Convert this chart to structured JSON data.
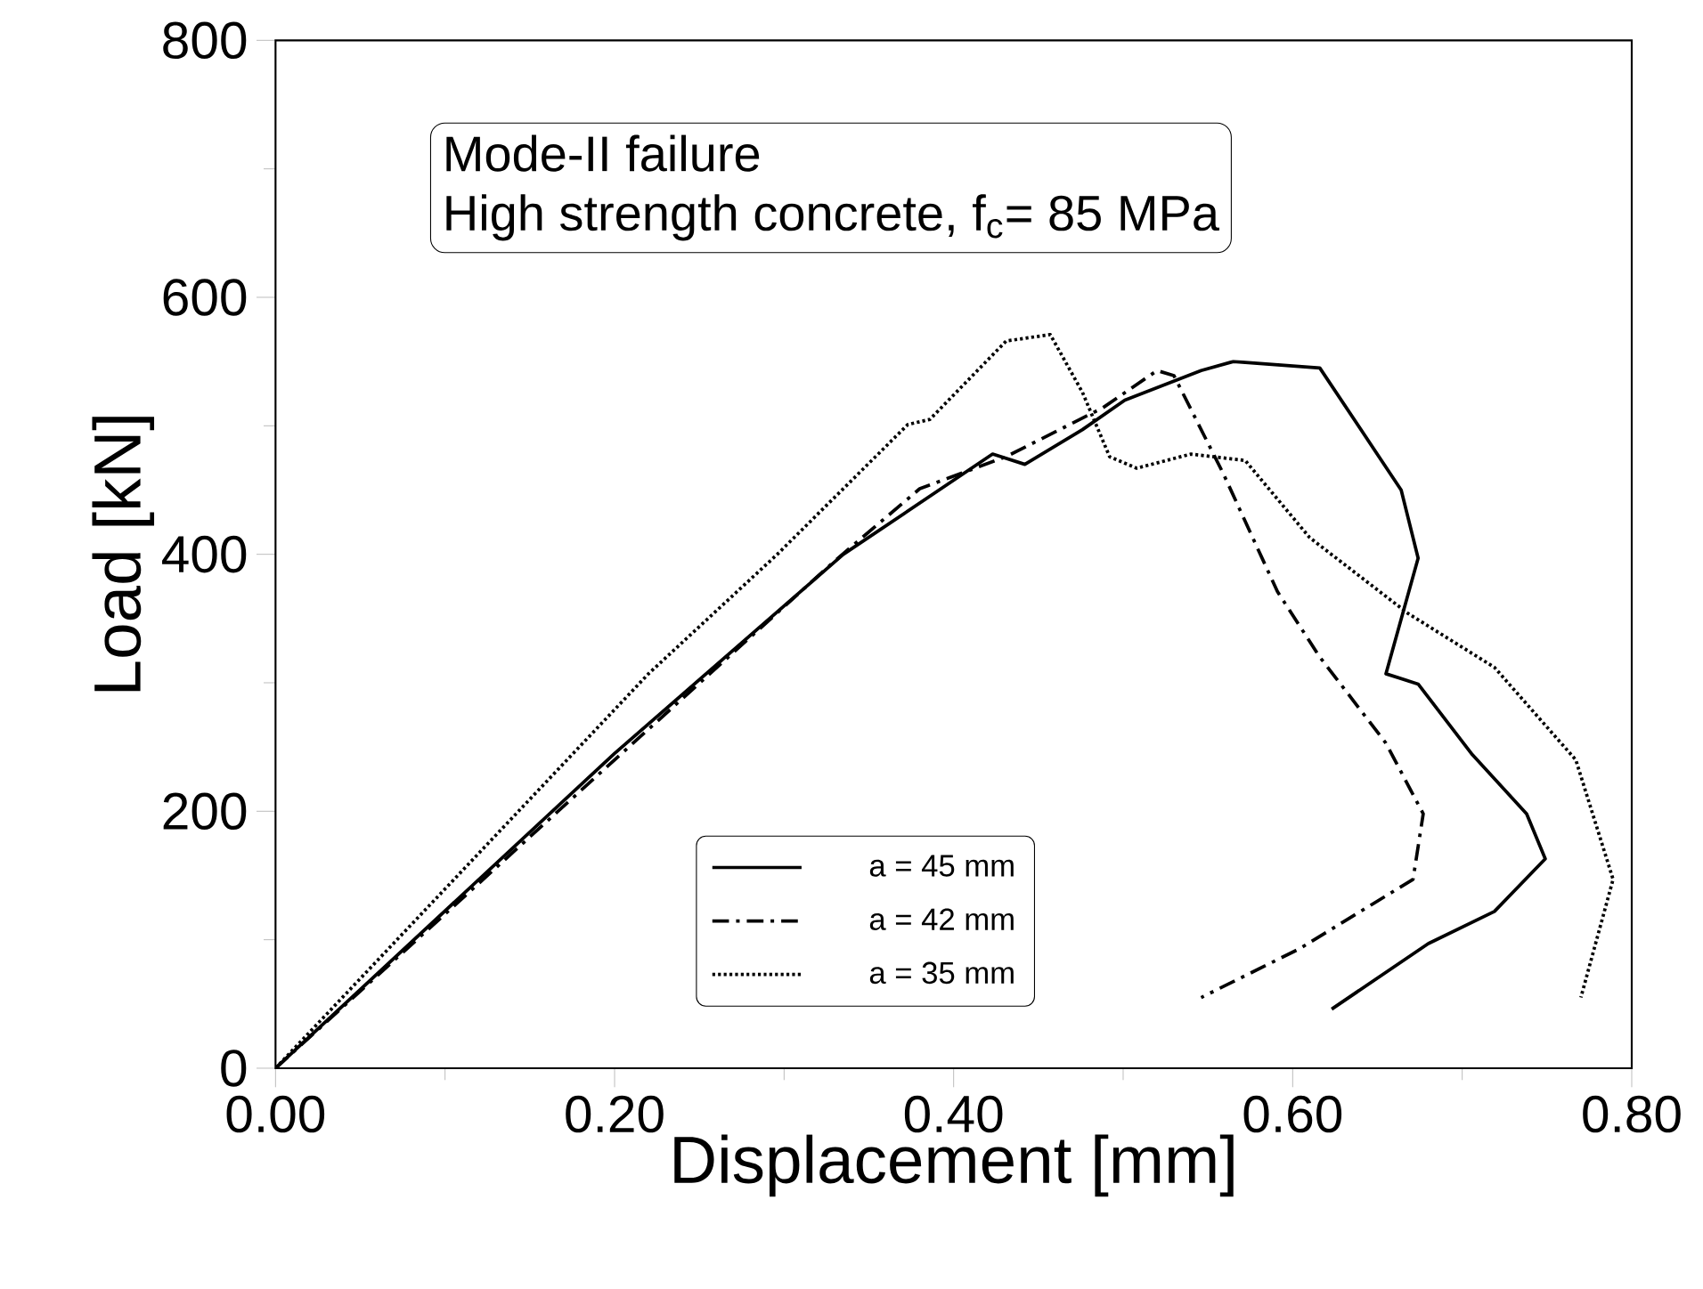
{
  "chart_data": {
    "type": "line",
    "xlabel": "Displacement [mm]",
    "ylabel": "Load [kN]",
    "annotations": [
      "Mode-II failure",
      "High strength concrete, f$_{c}$= 85 MPa"
    ],
    "xlim": [
      0,
      0.8
    ],
    "ylim": [
      0,
      800
    ],
    "xticks": [
      {
        "value": 0,
        "label": "0.00"
      },
      {
        "value": 0.2,
        "label": "0.20"
      },
      {
        "value": 0.4,
        "label": "0.40"
      },
      {
        "value": 0.6,
        "label": "0.60"
      },
      {
        "value": 0.8,
        "label": "0.80"
      }
    ],
    "yticks": [
      0,
      200,
      400,
      600,
      800
    ],
    "legend": "bottom",
    "grid": false,
    "marker": "none",
    "series": [
      {
        "name": "a = 45 mm",
        "color": "#000000",
        "line_style": "solid",
        "x": [
          0,
          0.2,
          0.335,
          0.423,
          0.442,
          0.476,
          0.501,
          0.546,
          0.565,
          0.616,
          0.664,
          0.674,
          0.655,
          0.674,
          0.706,
          0.738,
          0.749,
          0.719,
          0.68,
          0.623
        ],
        "values": [
          0,
          245,
          400,
          478,
          470,
          497,
          520,
          543,
          550,
          545,
          450,
          397,
          307,
          299,
          244,
          198,
          163,
          122,
          97,
          46
        ]
      },
      {
        "name": "a = 42 mm",
        "color": "#000000",
        "line_style": "dashed",
        "x": [
          0,
          0.2,
          0.33,
          0.38,
          0.431,
          0.488,
          0.52,
          0.53,
          0.559,
          0.591,
          0.616,
          0.655,
          0.677,
          0.671,
          0.604,
          0.546
        ],
        "values": [
          0,
          240,
          395,
          451,
          476,
          514,
          543,
          539,
          463,
          371,
          320,
          253,
          198,
          147,
          93,
          55
        ]
      },
      {
        "name": "a = 35 mm",
        "color": "#000000",
        "line_style": "dotted",
        "x": [
          0,
          0.22,
          0.296,
          0.373,
          0.386,
          0.431,
          0.457,
          0.476,
          0.492,
          0.508,
          0.54,
          0.572,
          0.61,
          0.668,
          0.719,
          0.767,
          0.789,
          0.77
        ],
        "values": [
          0,
          307,
          400,
          501,
          505,
          566,
          571,
          526,
          476,
          467,
          478,
          473,
          413,
          354,
          312,
          240,
          147,
          55
        ]
      }
    ]
  }
}
